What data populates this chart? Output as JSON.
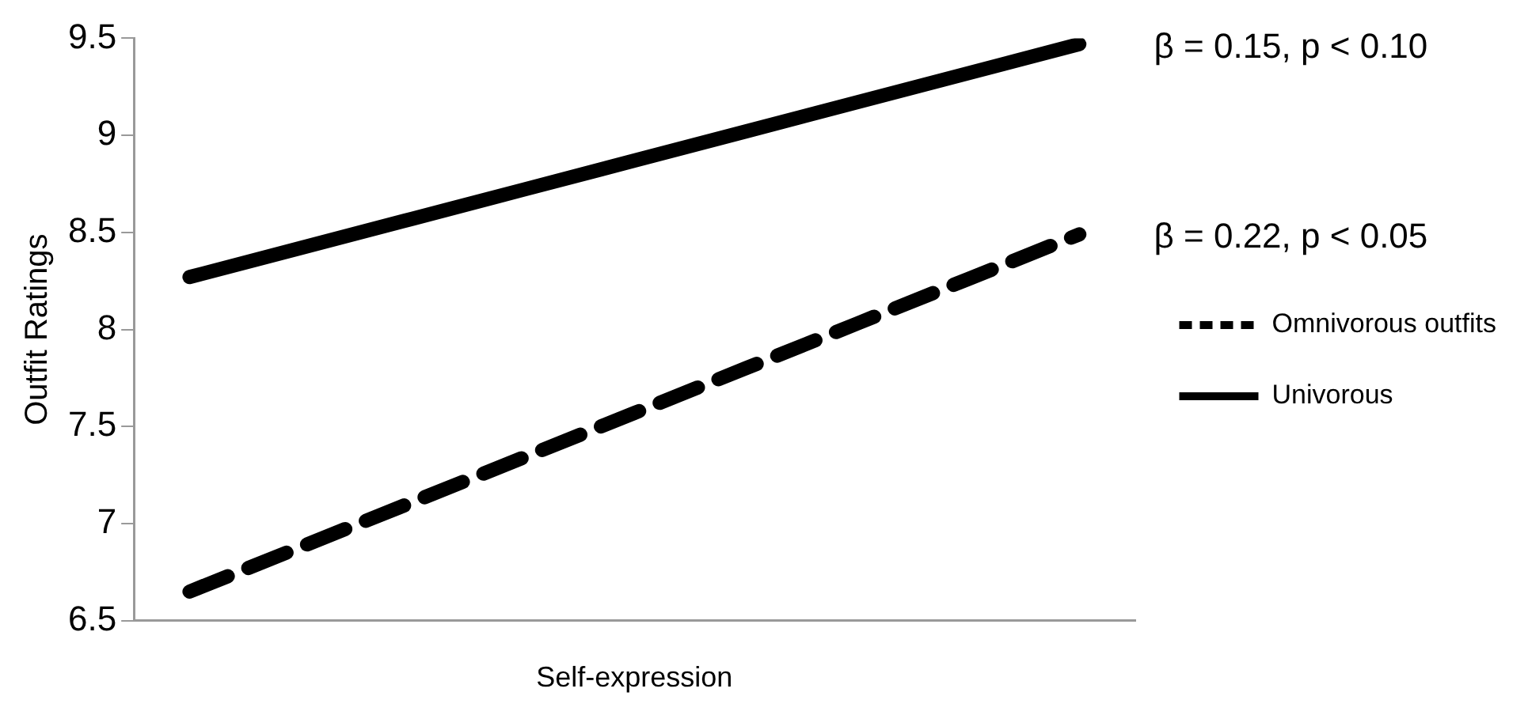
{
  "chart_data": {
    "type": "line",
    "xlabel": "Self-expression",
    "ylabel": "Outfit Ratings",
    "categories": [
      null,
      null,
      null,
      null,
      null,
      null,
      null,
      null,
      null
    ],
    "series": [
      {
        "name": "Omnivorous outfits",
        "color": "#000000",
        "line_style": "dashed",
        "values": [
          6.65,
          6.88,
          7.11,
          7.34,
          7.57,
          7.8,
          8.03,
          8.26,
          8.49
        ]
      },
      {
        "name": "Univorous",
        "color": "#000000",
        "line_style": "solid",
        "values": [
          8.27,
          8.42,
          8.57,
          8.72,
          8.87,
          9.02,
          9.17,
          9.32,
          9.47
        ]
      }
    ],
    "ylim": [
      6.5,
      9.5
    ],
    "yticks": [
      6.5,
      7,
      7.5,
      8,
      8.5,
      9,
      9.5
    ],
    "grid": false,
    "legend": "right",
    "marker": "none",
    "tick_labels": "y",
    "annotations": [
      "β = 0.15, p < 0.10",
      "β = 0.22, p < 0.05"
    ]
  }
}
